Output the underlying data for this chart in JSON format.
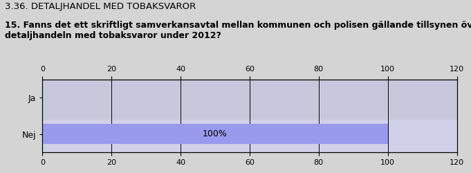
{
  "title": "3.36. DETALJHANDEL MED TOBAKSVAROR",
  "question": "15. Fanns det ett skriftligt samverkansavtal mellan kommunen och polisen gällande tillsynen över\ndetaljhandeln med tobaksvaror under 2012?",
  "categories": [
    "Ja",
    "Nej"
  ],
  "values": [
    0,
    100
  ],
  "bar_color": "#9999ee",
  "plot_bg_color_top": "#c8c8dc",
  "plot_bg_color_bottom": "#d0d0e8",
  "background_color": "#d4d4d4",
  "xlim": [
    0,
    120
  ],
  "xticks": [
    0,
    20,
    40,
    60,
    80,
    100,
    120
  ],
  "bar_label": "100%",
  "label_fontsize": 9,
  "title_fontsize": 9.5,
  "question_fontsize": 9,
  "tick_fontsize": 8
}
